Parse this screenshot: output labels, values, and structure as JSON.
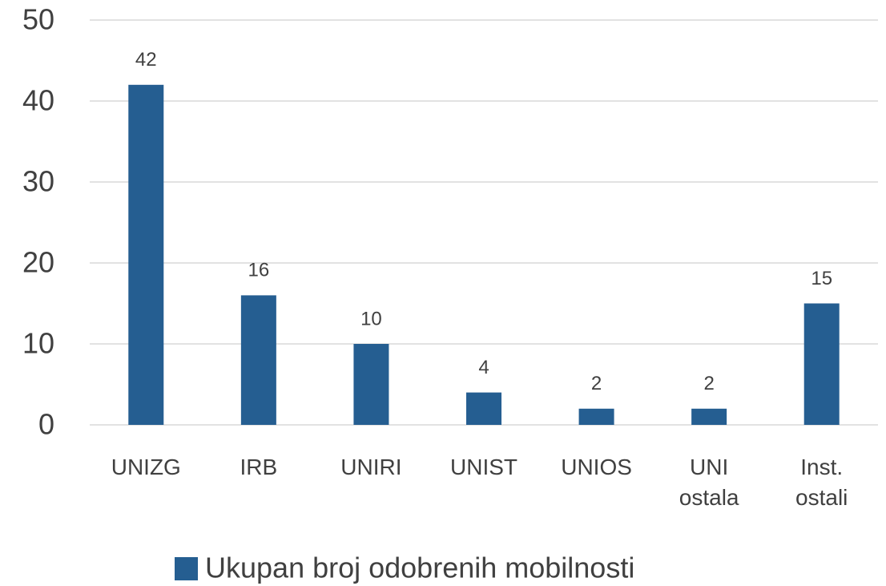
{
  "chart_data": {
    "type": "bar",
    "categories": [
      "UNIZG",
      "IRB",
      "UNIRI",
      "UNIST",
      "UNIOS",
      "UNI ostala",
      "Inst. ostali"
    ],
    "series": [
      {
        "name": "Ukupan broj odobrenih mobilnosti",
        "color": "#255e91",
        "values": [
          42,
          16,
          10,
          4,
          2,
          2,
          15
        ]
      }
    ],
    "ylim": [
      0,
      50
    ],
    "yticks": [
      0,
      10,
      20,
      30,
      40,
      50
    ],
    "grid": true,
    "legend": "bottom"
  }
}
